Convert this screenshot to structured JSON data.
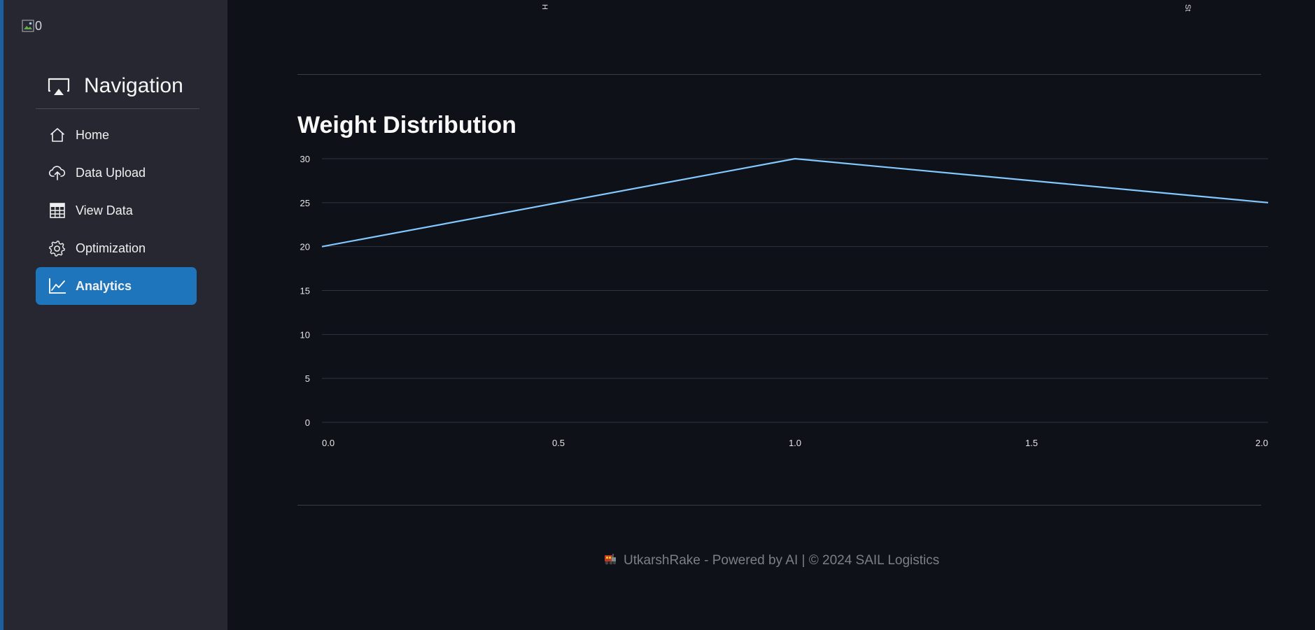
{
  "sidebar": {
    "logo_alt": "0",
    "nav_title": "Navigation",
    "items": [
      {
        "label": "Home",
        "icon": "house-icon"
      },
      {
        "label": "Data Upload",
        "icon": "cloud-upload-icon"
      },
      {
        "label": "View Data",
        "icon": "table-icon"
      },
      {
        "label": "Optimization",
        "icon": "gear-icon"
      },
      {
        "label": "Analytics",
        "icon": "line-chart-icon",
        "active": true
      }
    ],
    "accent_color": "#1e75bb"
  },
  "main": {
    "top_clipped_labels": [
      "H",
      "St"
    ],
    "section_title": "Weight Distribution",
    "footer": "UtkarshRake - Powered by AI | © 2024 SAIL Logistics"
  },
  "chart_data": {
    "type": "line",
    "x": [
      0,
      1,
      2
    ],
    "series": [
      {
        "values": [
          20,
          30,
          25
        ],
        "color": "#83c9ff"
      }
    ],
    "xticks": [
      "0.0",
      "0.5",
      "1.0",
      "1.5",
      "2.0"
    ],
    "yticks": [
      "0",
      "5",
      "10",
      "15",
      "20",
      "25",
      "30"
    ],
    "xlim": [
      0,
      2
    ],
    "ylim": [
      0,
      30
    ],
    "grid": true,
    "title": "",
    "xlabel": "",
    "ylabel": ""
  }
}
